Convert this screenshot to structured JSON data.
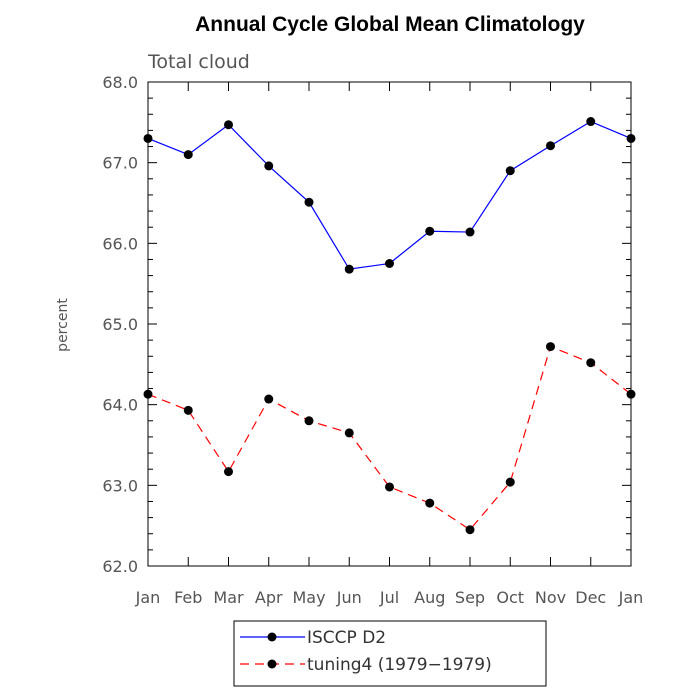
{
  "chart_data": {
    "type": "line",
    "title": "Annual Cycle Global Mean Climatology",
    "subtitle": "Total cloud",
    "xlabel": "",
    "ylabel": "percent",
    "categories": [
      "Jan",
      "Feb",
      "Mar",
      "Apr",
      "May",
      "Jun",
      "Jul",
      "Aug",
      "Sep",
      "Oct",
      "Nov",
      "Dec",
      "Jan"
    ],
    "ylim": [
      62.0,
      68.0
    ],
    "yticks": [
      "62.0",
      "63.0",
      "64.0",
      "65.0",
      "66.0",
      "67.0",
      "68.0"
    ],
    "series": [
      {
        "name": "ISCCP D2",
        "color": "#0000ff",
        "dash": "solid",
        "values": [
          67.3,
          67.1,
          67.47,
          66.96,
          66.51,
          65.68,
          65.75,
          66.15,
          66.14,
          66.9,
          67.21,
          67.51,
          67.3
        ]
      },
      {
        "name": "tuning4 (1979−1979)",
        "color": "#ff0000",
        "dash": "dashed",
        "values": [
          64.13,
          63.93,
          63.17,
          64.07,
          63.8,
          63.65,
          62.98,
          62.78,
          62.45,
          63.04,
          64.72,
          64.52,
          64.13
        ]
      }
    ]
  }
}
